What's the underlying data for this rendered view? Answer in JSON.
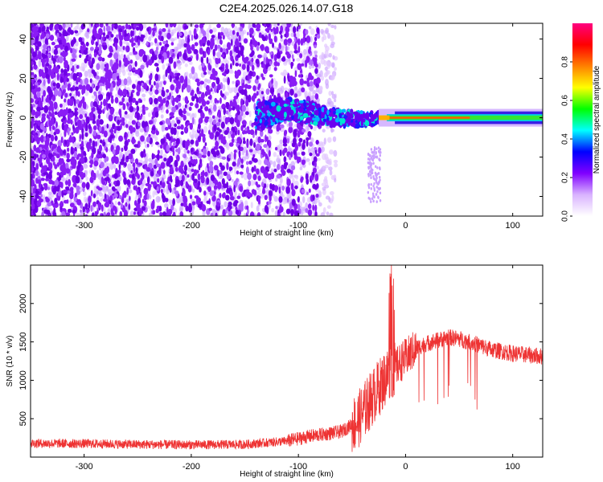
{
  "title": "C2E4.2025.026.14.07.G18",
  "chart_data": [
    {
      "type": "heatmap",
      "xlabel": "Height of straight line (km)",
      "ylabel": "Frequency (Hz)",
      "xlim": [
        -350,
        128
      ],
      "ylim": [
        -50,
        48
      ],
      "x_ticks": [
        -300,
        -200,
        -100,
        0,
        100
      ],
      "y_ticks": [
        -40,
        -20,
        0,
        20,
        40
      ],
      "grid": false,
      "colorbar": {
        "label": "Normalized spectral amplitude",
        "range": [
          0,
          1
        ],
        "ticks": [
          0.0,
          0.2,
          0.4,
          0.6,
          0.8
        ],
        "tick_labels": [
          "0.0",
          "0.2",
          "0.4",
          "0.6",
          "0.8"
        ],
        "colormap": [
          "#ffffff",
          "#d9b3ff",
          "#8000ff",
          "#0000ff",
          "#00ffff",
          "#00ff00",
          "#ffff00",
          "#ff8000",
          "#ff0000",
          "#ff0080"
        ]
      },
      "features": {
        "noise_region_x": [
          -350,
          -80
        ],
        "doppler_trace_x": [
          -140,
          -20
        ],
        "carrier_x": [
          -25,
          128
        ],
        "carrier_frequency": 0
      }
    },
    {
      "type": "line",
      "xlabel": "Height of straight line (km)",
      "ylabel": "SNR (10 * v/v)",
      "xlim": [
        -350,
        128
      ],
      "ylim": [
        0,
        2500
      ],
      "x_ticks": [
        -300,
        -200,
        -100,
        0,
        100
      ],
      "y_ticks": [
        500,
        1000,
        1500,
        2000
      ],
      "grid": false,
      "series": [
        {
          "color": "#ee3333",
          "profile_x": [
            -350,
            -300,
            -250,
            -200,
            -150,
            -110,
            -90,
            -75,
            -60,
            -45,
            -30,
            -20,
            -14,
            -10,
            -5,
            0,
            10,
            20,
            30,
            40,
            50,
            60,
            80,
            100,
            128
          ],
          "profile_y": [
            180,
            175,
            165,
            160,
            165,
            210,
            270,
            300,
            330,
            470,
            800,
            1000,
            1150,
            1150,
            1230,
            1290,
            1420,
            1480,
            1520,
            1560,
            1540,
            1500,
            1400,
            1350,
            1310
          ]
        }
      ]
    }
  ]
}
